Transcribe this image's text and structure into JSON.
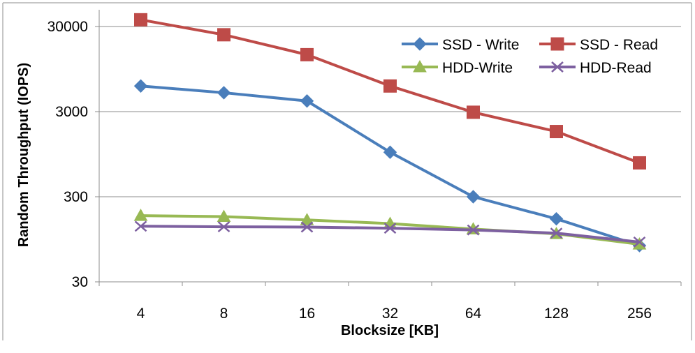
{
  "chart_data": {
    "type": "line",
    "xlabel": "Blocksize [KB]",
    "ylabel": "Random Throughput (IOPS)",
    "y_scale": "log",
    "ylim": [
      30,
      40000
    ],
    "y_ticks": [
      30,
      300,
      3000,
      30000
    ],
    "y_tick_labels": [
      "30",
      "300",
      "3000",
      "30000"
    ],
    "categories": [
      "4",
      "8",
      "16",
      "32",
      "64",
      "128",
      "256"
    ],
    "grid": "horizontal",
    "legend_position": "top-right",
    "series": [
      {
        "name": "SSD - Write",
        "color": "#4a7ebb",
        "marker": "diamond",
        "values": [
          6000,
          5000,
          4000,
          1000,
          300,
          165,
          80
        ]
      },
      {
        "name": "SSD - Read",
        "color": "#be4b48",
        "marker": "square",
        "values": [
          36000,
          24000,
          14000,
          6000,
          2950,
          1750,
          750
        ]
      },
      {
        "name": "HDD-Write",
        "color": "#98b954",
        "marker": "triangle",
        "values": [
          180,
          175,
          160,
          145,
          125,
          110,
          83
        ]
      },
      {
        "name": "HDD-Read",
        "color": "#7d60a0",
        "marker": "x",
        "values": [
          135,
          133,
          132,
          128,
          122,
          112,
          88
        ]
      }
    ]
  }
}
